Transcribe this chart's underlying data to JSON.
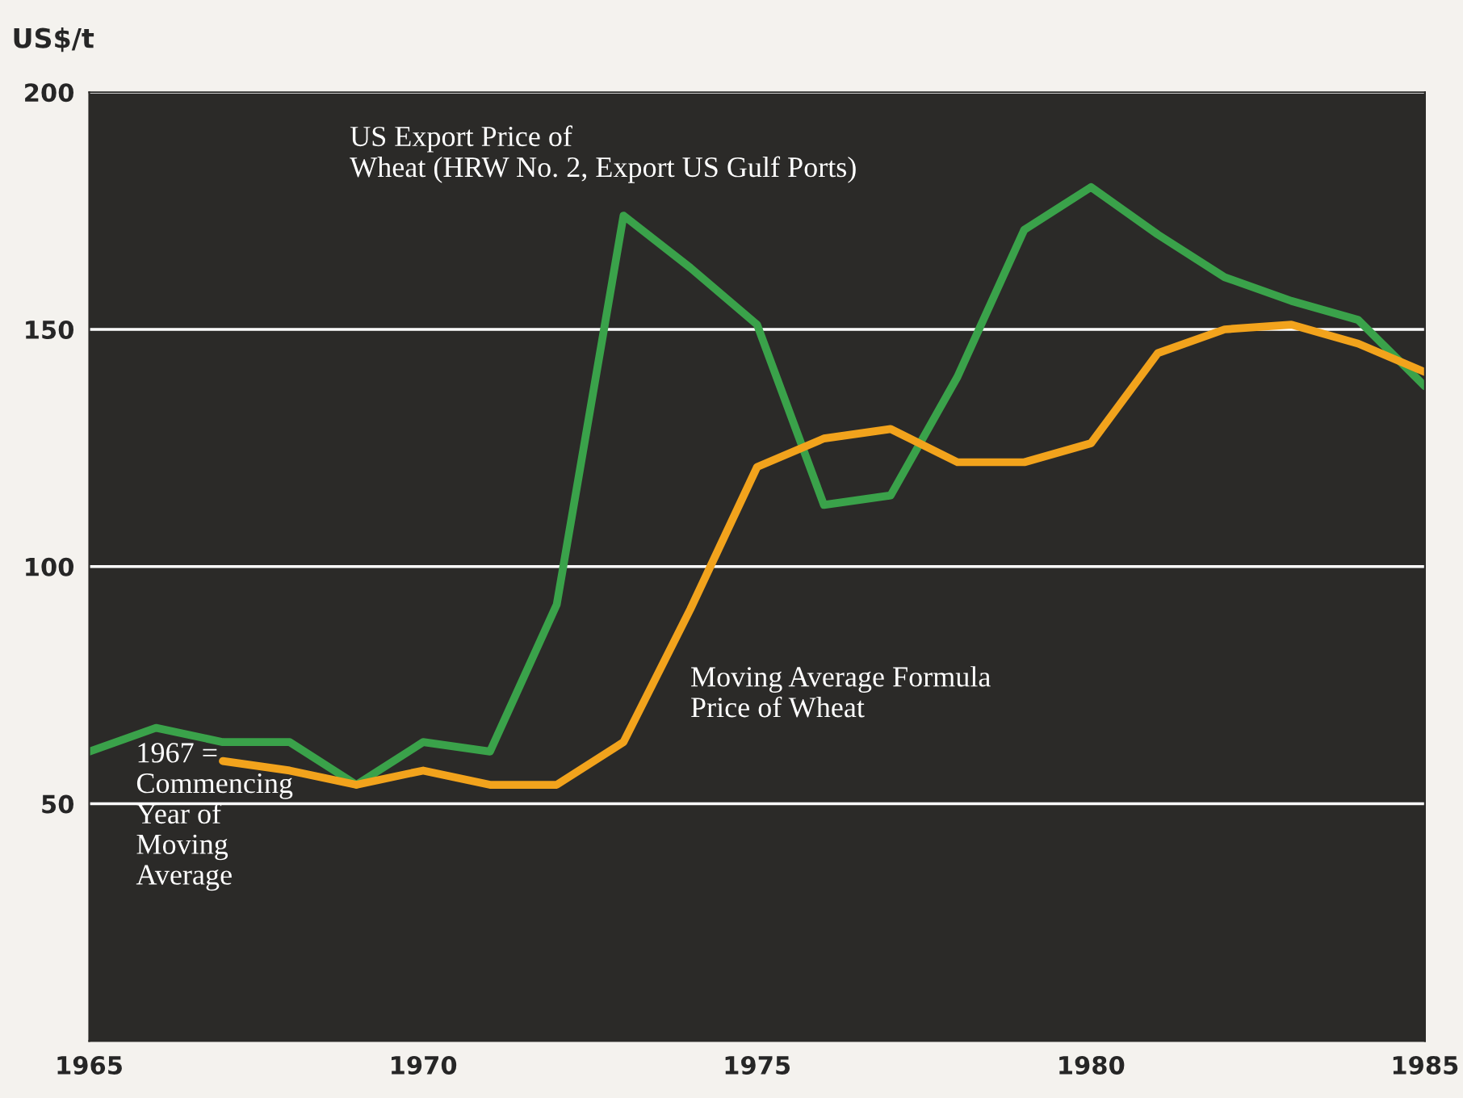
{
  "chart_data": {
    "type": "line",
    "ylabel": "US$/t",
    "x": [
      1965,
      1966,
      1967,
      1968,
      1969,
      1970,
      1971,
      1972,
      1973,
      1974,
      1975,
      1976,
      1977,
      1978,
      1979,
      1980,
      1981,
      1982,
      1983,
      1984,
      1985
    ],
    "series": [
      {
        "name": "US Export Price of\nWheat (HRW No. 2, Export US Gulf Ports)",
        "color": "#3aa24a",
        "values": [
          61,
          66,
          63,
          63,
          54,
          63,
          61,
          92,
          174,
          163,
          151,
          113,
          115,
          140,
          171,
          180,
          170,
          161,
          156,
          152,
          138
        ]
      },
      {
        "name": "Moving Average Formula\nPrice of Wheat",
        "color": "#f2a31c",
        "values": [
          null,
          null,
          59,
          57,
          54,
          57,
          54,
          54,
          63,
          91,
          121,
          127,
          129,
          122,
          122,
          126,
          145,
          150,
          151,
          147,
          141
        ]
      }
    ],
    "annotations": [
      "1967 =\nCommencing\nYear of\nMoving\nAverage"
    ],
    "xlim": [
      1965,
      1985
    ],
    "xticks": [
      1965,
      1970,
      1975,
      1980,
      1985
    ],
    "ylim": [
      0,
      200
    ],
    "yticks": [
      50,
      100,
      150,
      200
    ],
    "grid": "y",
    "legend": false,
    "marker": "none",
    "line_style": "solid"
  }
}
